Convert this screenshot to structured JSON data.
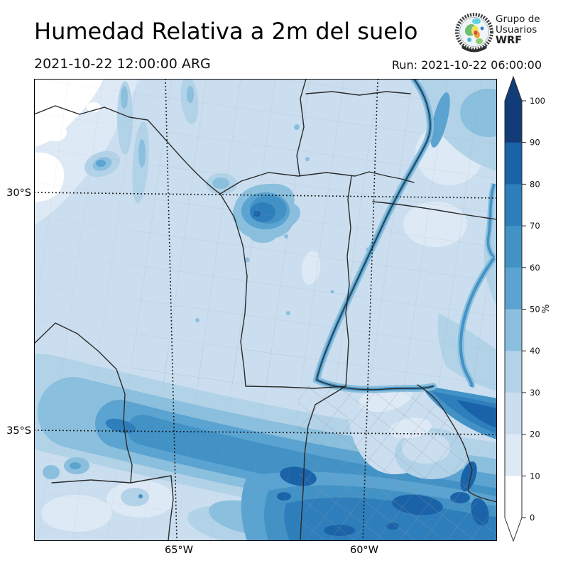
{
  "header": {
    "title": "Humedad Relativa a 2m del suelo",
    "valid_time": "2021-10-22 12:00:00 ARG",
    "run_label": "Run: 2021-10-22 06:00:00",
    "logo": {
      "line1": "Grupo de",
      "line2": "Usuarios",
      "line3": "WRF"
    }
  },
  "map": {
    "y_ticks": [
      {
        "label": "30°S"
      },
      {
        "label": "35°S"
      }
    ],
    "x_ticks": [
      {
        "label": "65°W"
      },
      {
        "label": "60°W"
      }
    ]
  },
  "colorbar": {
    "unit": "%",
    "tick_labels": [
      "0",
      "10",
      "20",
      "30",
      "40",
      "50",
      "60",
      "70",
      "80",
      "90",
      "100"
    ],
    "levels": [
      {
        "range": "0-10",
        "color": "#ffffff"
      },
      {
        "range": "10-20",
        "color": "#dde9f5"
      },
      {
        "range": "20-30",
        "color": "#cadeef"
      },
      {
        "range": "30-40",
        "color": "#b2d2e8"
      },
      {
        "range": "40-50",
        "color": "#8abfdd"
      },
      {
        "range": "50-60",
        "color": "#5ba3d0"
      },
      {
        "range": "60-70",
        "color": "#4292c6"
      },
      {
        "range": "70-80",
        "color": "#2e7ebc"
      },
      {
        "range": "80-90",
        "color": "#1b63a8"
      },
      {
        "range": "90-100",
        "color": "#123c78"
      }
    ],
    "extend_over_color": "#123c78",
    "extend_under_color": "#ffffff"
  }
}
